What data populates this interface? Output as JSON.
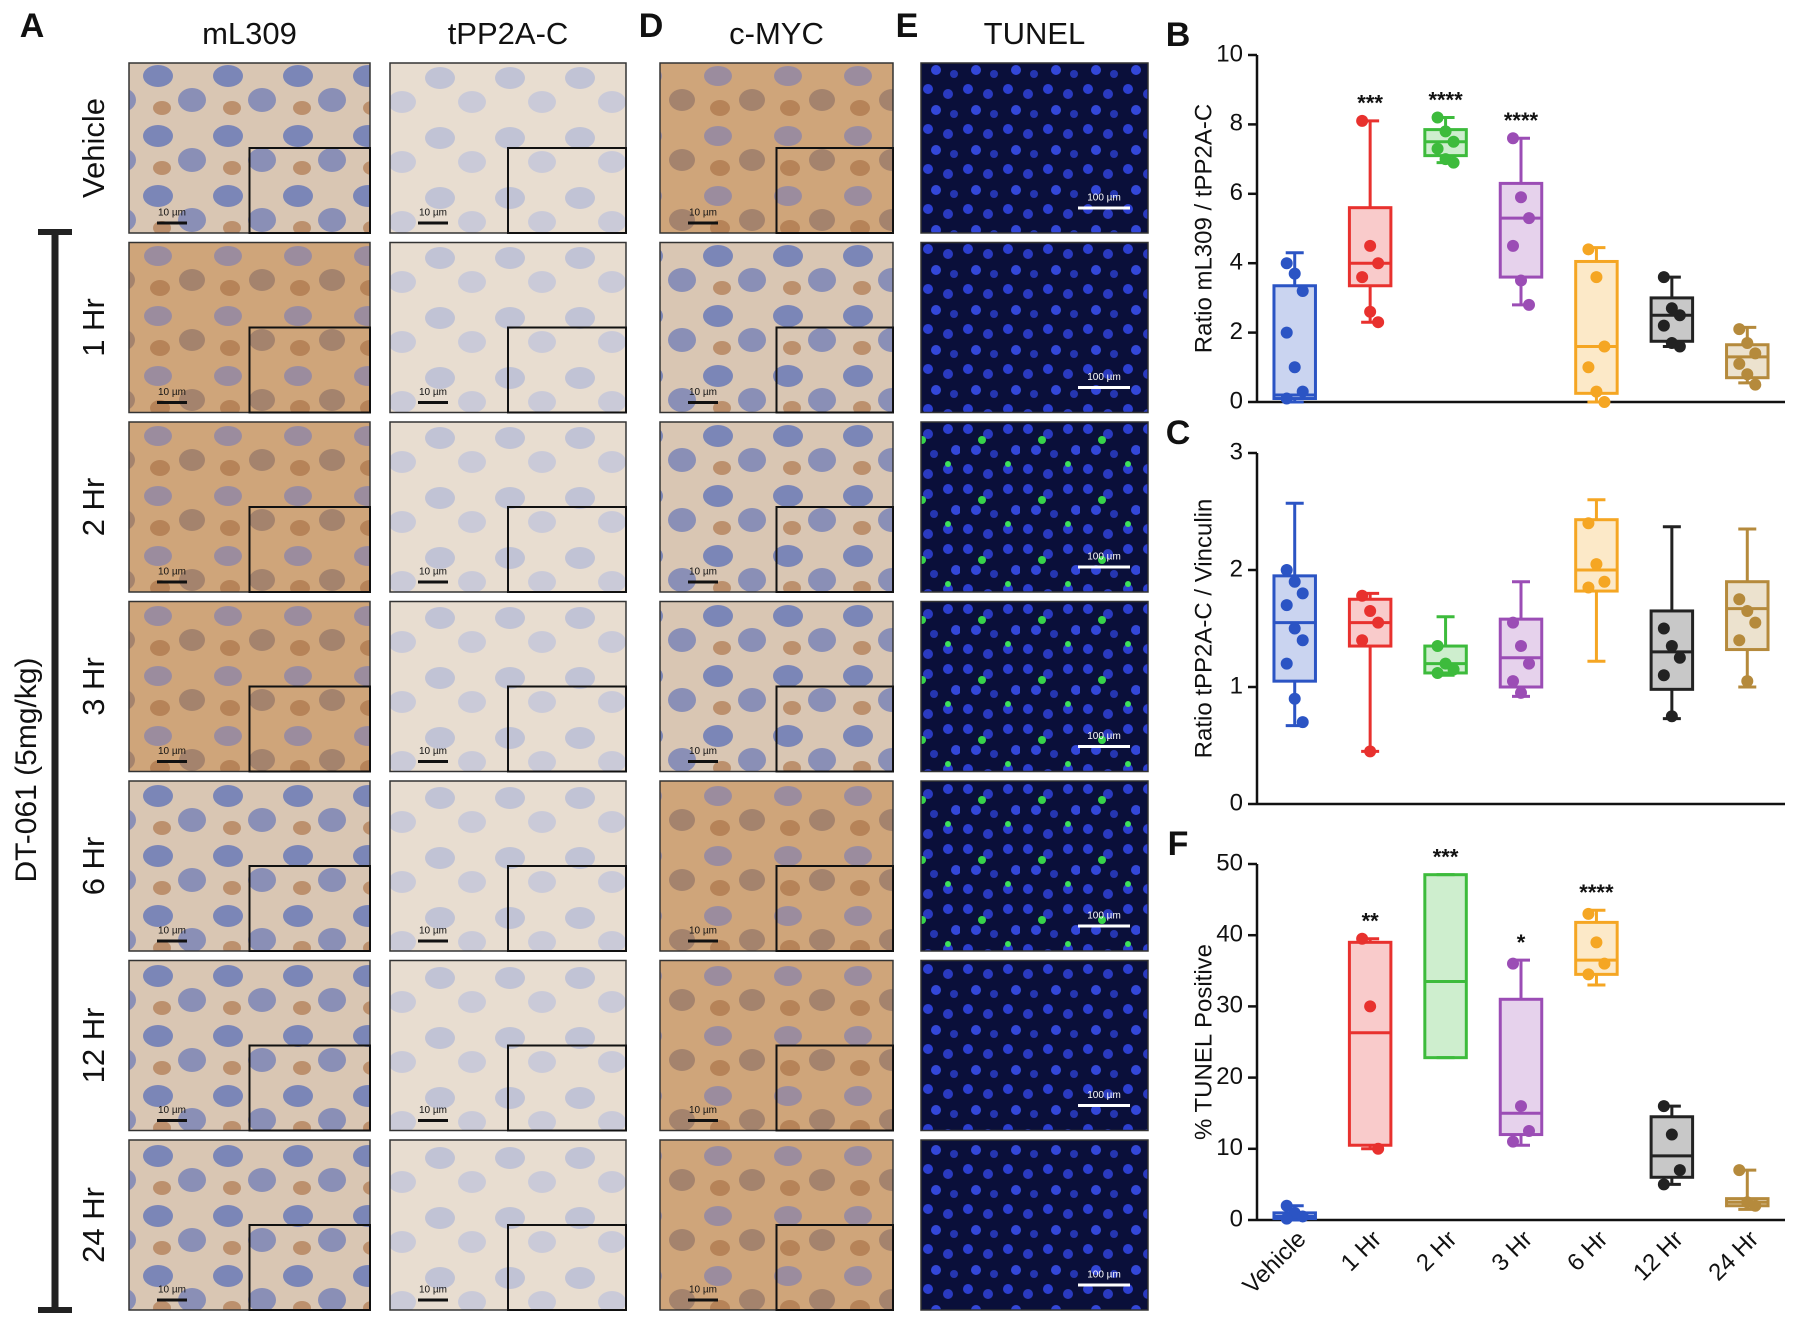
{
  "figure": {
    "panels": [
      "A",
      "D",
      "E"
    ],
    "column_headers": [
      "mL309",
      "tPP2A-C",
      "c-MYC",
      "TUNEL"
    ],
    "rows": [
      "Vehicle",
      "1 Hr",
      "2 Hr",
      "3 Hr",
      "6 Hr",
      "12 Hr",
      "24 Hr"
    ],
    "treatment": "DT-061 (5mg/kg)",
    "scale_bars": {
      "ihc": "10 µm",
      "tunel": "100 µm"
    }
  },
  "chart_data": [
    {
      "type": "box",
      "panel": "B",
      "ylabel": "Ratio mL309 / tPP2A-C",
      "ylim": [
        0,
        10
      ],
      "yticks": [
        0,
        2,
        4,
        6,
        8,
        10
      ],
      "colors": [
        "#2b54c4",
        "#e8312e",
        "#3dbb3c",
        "#9b4db5",
        "#f5a623",
        "#222222",
        "#b58a3c"
      ],
      "significance": [
        null,
        "***",
        "****",
        "****",
        null,
        null,
        null
      ],
      "boxes": [
        {
          "min": 0,
          "q1": 0.1,
          "median": 0.2,
          "q3": 3.35,
          "max": 4.3,
          "points": [
            4.0,
            3.7,
            3.2,
            2.0,
            1.0,
            0.3,
            0.1
          ]
        },
        {
          "min": 2.3,
          "q1": 3.35,
          "median": 4.0,
          "q3": 5.6,
          "max": 8.1,
          "points": [
            8.1,
            4.5,
            4.0,
            3.6,
            2.6,
            2.3
          ]
        },
        {
          "min": 6.9,
          "q1": 7.1,
          "median": 7.5,
          "q3": 7.85,
          "max": 8.2,
          "points": [
            8.2,
            7.8,
            7.5,
            7.3,
            7.0,
            6.9
          ]
        },
        {
          "min": 2.8,
          "q1": 3.6,
          "median": 5.3,
          "q3": 6.3,
          "max": 7.6,
          "points": [
            7.6,
            5.9,
            5.3,
            4.5,
            3.5,
            2.8
          ]
        },
        {
          "min": 0,
          "q1": 0.25,
          "median": 1.6,
          "q3": 4.05,
          "max": 4.45,
          "points": [
            4.4,
            3.6,
            1.6,
            1.0,
            0.3,
            0
          ]
        },
        {
          "min": 1.6,
          "q1": 1.75,
          "median": 2.5,
          "q3": 3.0,
          "max": 3.6,
          "points": [
            3.6,
            2.7,
            2.5,
            2.2,
            1.7,
            1.6
          ]
        },
        {
          "min": 0.55,
          "q1": 0.7,
          "median": 1.3,
          "q3": 1.65,
          "max": 2.15,
          "points": [
            2.1,
            1.7,
            1.4,
            1.1,
            0.8,
            0.5
          ]
        }
      ]
    },
    {
      "type": "box",
      "panel": "C",
      "ylabel": "Ratio tPP2A-C / Vinculin",
      "ylim": [
        0,
        3
      ],
      "yticks": [
        0,
        1,
        2,
        3
      ],
      "colors": [
        "#2b54c4",
        "#e8312e",
        "#3dbb3c",
        "#9b4db5",
        "#f5a623",
        "#222222",
        "#b58a3c"
      ],
      "boxes": [
        {
          "min": 0.67,
          "q1": 1.05,
          "median": 1.55,
          "q3": 1.95,
          "max": 2.57,
          "points": [
            2.0,
            1.9,
            1.8,
            1.7,
            1.5,
            1.4,
            1.2,
            0.9,
            0.7
          ]
        },
        {
          "min": 0.45,
          "q1": 1.35,
          "median": 1.55,
          "q3": 1.75,
          "max": 1.8,
          "points": [
            1.78,
            1.65,
            1.55,
            1.4,
            0.45
          ]
        },
        {
          "min": 1.1,
          "q1": 1.12,
          "median": 1.2,
          "q3": 1.35,
          "max": 1.6,
          "points": [
            1.35,
            1.2,
            1.15,
            1.12
          ]
        },
        {
          "min": 0.92,
          "q1": 1.0,
          "median": 1.25,
          "q3": 1.58,
          "max": 1.9,
          "points": [
            1.55,
            1.35,
            1.2,
            1.05,
            0.95
          ]
        },
        {
          "min": 1.22,
          "q1": 1.82,
          "median": 2.0,
          "q3": 2.43,
          "max": 2.6,
          "points": [
            2.4,
            2.05,
            1.9,
            1.85
          ]
        },
        {
          "min": 0.73,
          "q1": 0.98,
          "median": 1.3,
          "q3": 1.65,
          "max": 2.37,
          "points": [
            1.5,
            1.35,
            1.25,
            1.1,
            0.75
          ]
        },
        {
          "min": 1.0,
          "q1": 1.32,
          "median": 1.67,
          "q3": 1.9,
          "max": 2.35,
          "points": [
            1.75,
            1.65,
            1.55,
            1.4,
            1.05
          ]
        }
      ]
    },
    {
      "type": "box",
      "panel": "F",
      "ylabel": "% TUNEL Positive",
      "ylim": [
        0,
        50
      ],
      "yticks": [
        0,
        10,
        20,
        30,
        40,
        50
      ],
      "categories": [
        "Vehicle",
        "1 Hr",
        "2 Hr",
        "3 Hr",
        "6 Hr",
        "12 Hr",
        "24 Hr"
      ],
      "colors": [
        "#2b54c4",
        "#e8312e",
        "#3dbb3c",
        "#9b4db5",
        "#f5a623",
        "#222222",
        "#b58a3c"
      ],
      "significance": [
        null,
        "**",
        "***",
        "*",
        "****",
        null,
        null
      ],
      "boxes": [
        {
          "min": 0,
          "q1": 0.2,
          "median": 0.5,
          "q3": 1,
          "max": 2,
          "points": [
            2,
            1,
            0.5,
            0.2
          ]
        },
        {
          "min": 10,
          "q1": 10.5,
          "median": 26.3,
          "q3": 39,
          "max": 39.5,
          "points": [
            39.5,
            30,
            10
          ]
        },
        {
          "min": 22.8,
          "q1": 22.8,
          "median": 33.5,
          "q3": 48.5,
          "max": 48.5,
          "points": []
        },
        {
          "min": 10.5,
          "q1": 12,
          "median": 15,
          "q3": 31,
          "max": 36.5,
          "points": [
            36,
            16,
            12.5,
            11
          ]
        },
        {
          "min": 33,
          "q1": 34.5,
          "median": 36.5,
          "q3": 41.8,
          "max": 43.5,
          "points": [
            43,
            39,
            36,
            34.5
          ]
        },
        {
          "min": 5,
          "q1": 6,
          "median": 9,
          "q3": 14.5,
          "max": 16,
          "points": [
            16,
            12,
            7,
            5
          ]
        },
        {
          "min": 1.5,
          "q1": 2,
          "median": 2.5,
          "q3": 3,
          "max": 7,
          "points": [
            7,
            2.5,
            2
          ]
        }
      ]
    }
  ]
}
